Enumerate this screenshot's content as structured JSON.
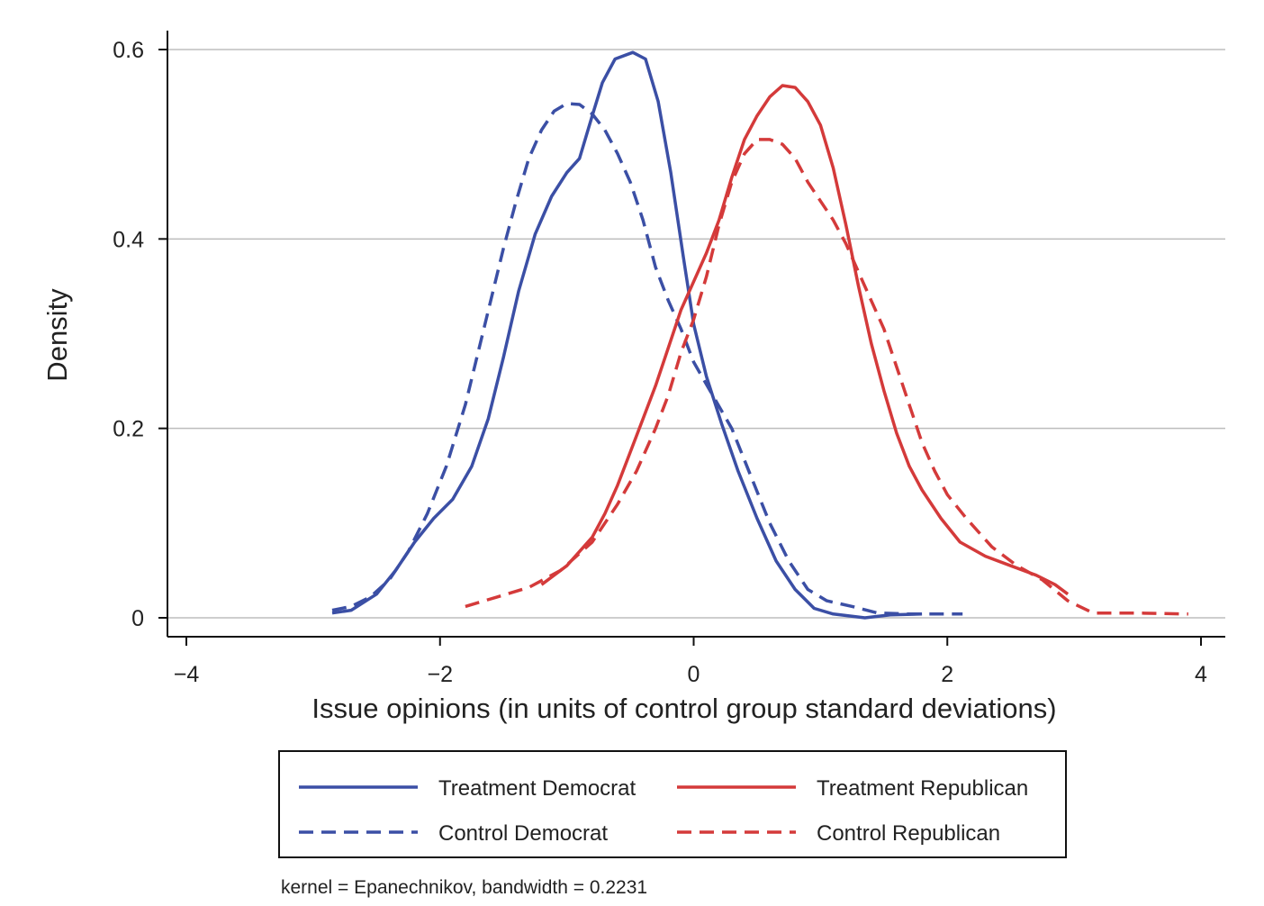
{
  "chart_data": {
    "type": "line",
    "title": "",
    "xlabel": "Issue opinions (in units of control group standard deviations)",
    "ylabel": "Density",
    "xlim": [
      -4,
      4
    ],
    "ylim": [
      0,
      0.6
    ],
    "xticks": [
      -4,
      -2,
      0,
      2,
      4
    ],
    "xtick_labels": [
      "−4",
      "−2",
      "0",
      "2",
      "4"
    ],
    "yticks": [
      0,
      0.2,
      0.4,
      0.6
    ],
    "ytick_labels": [
      "0",
      "0.2",
      "0.4",
      "0.6"
    ],
    "grid": "horizontal",
    "legend_position": "bottom",
    "note": "kernel = Epanechnikov, bandwidth = 0.2231",
    "series": [
      {
        "name": "Treatment Democrat",
        "color": "#3b4fa5",
        "dash": "solid",
        "points": [
          [
            -2.85,
            0.005
          ],
          [
            -2.7,
            0.008
          ],
          [
            -2.5,
            0.025
          ],
          [
            -2.35,
            0.05
          ],
          [
            -2.2,
            0.08
          ],
          [
            -2.05,
            0.105
          ],
          [
            -1.9,
            0.125
          ],
          [
            -1.75,
            0.16
          ],
          [
            -1.62,
            0.21
          ],
          [
            -1.5,
            0.275
          ],
          [
            -1.38,
            0.345
          ],
          [
            -1.25,
            0.405
          ],
          [
            -1.12,
            0.445
          ],
          [
            -1.0,
            0.47
          ],
          [
            -0.9,
            0.485
          ],
          [
            -0.8,
            0.53
          ],
          [
            -0.72,
            0.565
          ],
          [
            -0.62,
            0.59
          ],
          [
            -0.48,
            0.597
          ],
          [
            -0.38,
            0.59
          ],
          [
            -0.28,
            0.545
          ],
          [
            -0.18,
            0.47
          ],
          [
            -0.08,
            0.38
          ],
          [
            0.0,
            0.31
          ],
          [
            0.1,
            0.255
          ],
          [
            0.22,
            0.205
          ],
          [
            0.35,
            0.155
          ],
          [
            0.5,
            0.105
          ],
          [
            0.65,
            0.06
          ],
          [
            0.8,
            0.03
          ],
          [
            0.95,
            0.01
          ],
          [
            1.1,
            0.004
          ],
          [
            1.35,
            0.0
          ],
          [
            1.55,
            0.003
          ],
          [
            1.8,
            0.004
          ]
        ]
      },
      {
        "name": "Control Democrat",
        "color": "#3b4fa5",
        "dash": "dashed",
        "points": [
          [
            -2.85,
            0.008
          ],
          [
            -2.7,
            0.012
          ],
          [
            -2.55,
            0.022
          ],
          [
            -2.4,
            0.04
          ],
          [
            -2.25,
            0.07
          ],
          [
            -2.1,
            0.11
          ],
          [
            -1.95,
            0.16
          ],
          [
            -1.8,
            0.225
          ],
          [
            -1.7,
            0.28
          ],
          [
            -1.6,
            0.335
          ],
          [
            -1.5,
            0.39
          ],
          [
            -1.4,
            0.44
          ],
          [
            -1.3,
            0.485
          ],
          [
            -1.2,
            0.515
          ],
          [
            -1.1,
            0.535
          ],
          [
            -1.0,
            0.543
          ],
          [
            -0.9,
            0.542
          ],
          [
            -0.8,
            0.532
          ],
          [
            -0.7,
            0.515
          ],
          [
            -0.6,
            0.49
          ],
          [
            -0.5,
            0.46
          ],
          [
            -0.4,
            0.42
          ],
          [
            -0.3,
            0.37
          ],
          [
            -0.2,
            0.335
          ],
          [
            -0.1,
            0.305
          ],
          [
            0.0,
            0.27
          ],
          [
            0.15,
            0.235
          ],
          [
            0.3,
            0.2
          ],
          [
            0.45,
            0.15
          ],
          [
            0.6,
            0.1
          ],
          [
            0.75,
            0.06
          ],
          [
            0.9,
            0.03
          ],
          [
            1.05,
            0.018
          ],
          [
            1.25,
            0.012
          ],
          [
            1.45,
            0.005
          ],
          [
            1.7,
            0.004
          ],
          [
            1.9,
            0.004
          ],
          [
            2.12,
            0.004
          ]
        ]
      },
      {
        "name": "Treatment Republican",
        "color": "#d43a3a",
        "dash": "solid",
        "points": [
          [
            -1.2,
            0.035
          ],
          [
            -1.0,
            0.055
          ],
          [
            -0.8,
            0.085
          ],
          [
            -0.7,
            0.11
          ],
          [
            -0.6,
            0.14
          ],
          [
            -0.5,
            0.175
          ],
          [
            -0.4,
            0.21
          ],
          [
            -0.3,
            0.245
          ],
          [
            -0.2,
            0.285
          ],
          [
            -0.1,
            0.325
          ],
          [
            0.0,
            0.355
          ],
          [
            0.1,
            0.385
          ],
          [
            0.2,
            0.42
          ],
          [
            0.3,
            0.465
          ],
          [
            0.4,
            0.505
          ],
          [
            0.5,
            0.53
          ],
          [
            0.6,
            0.55
          ],
          [
            0.7,
            0.562
          ],
          [
            0.8,
            0.56
          ],
          [
            0.9,
            0.545
          ],
          [
            1.0,
            0.52
          ],
          [
            1.1,
            0.475
          ],
          [
            1.2,
            0.415
          ],
          [
            1.3,
            0.35
          ],
          [
            1.4,
            0.29
          ],
          [
            1.5,
            0.24
          ],
          [
            1.6,
            0.195
          ],
          [
            1.7,
            0.16
          ],
          [
            1.8,
            0.135
          ],
          [
            1.95,
            0.105
          ],
          [
            2.1,
            0.08
          ],
          [
            2.3,
            0.065
          ],
          [
            2.5,
            0.055
          ],
          [
            2.7,
            0.045
          ],
          [
            2.85,
            0.035
          ],
          [
            2.95,
            0.025
          ]
        ]
      },
      {
        "name": "Control Republican",
        "color": "#d43a3a",
        "dash": "dashed",
        "points": [
          [
            -1.8,
            0.012
          ],
          [
            -1.55,
            0.022
          ],
          [
            -1.3,
            0.032
          ],
          [
            -1.05,
            0.05
          ],
          [
            -0.8,
            0.08
          ],
          [
            -0.6,
            0.12
          ],
          [
            -0.45,
            0.155
          ],
          [
            -0.3,
            0.2
          ],
          [
            -0.2,
            0.235
          ],
          [
            -0.1,
            0.28
          ],
          [
            0.0,
            0.315
          ],
          [
            0.1,
            0.36
          ],
          [
            0.2,
            0.415
          ],
          [
            0.3,
            0.46
          ],
          [
            0.4,
            0.49
          ],
          [
            0.5,
            0.505
          ],
          [
            0.6,
            0.505
          ],
          [
            0.7,
            0.5
          ],
          [
            0.8,
            0.485
          ],
          [
            0.9,
            0.46
          ],
          [
            1.0,
            0.44
          ],
          [
            1.1,
            0.42
          ],
          [
            1.2,
            0.395
          ],
          [
            1.3,
            0.365
          ],
          [
            1.4,
            0.335
          ],
          [
            1.5,
            0.305
          ],
          [
            1.6,
            0.265
          ],
          [
            1.7,
            0.225
          ],
          [
            1.8,
            0.185
          ],
          [
            1.9,
            0.155
          ],
          [
            2.0,
            0.13
          ],
          [
            2.15,
            0.105
          ],
          [
            2.35,
            0.075
          ],
          [
            2.55,
            0.055
          ],
          [
            2.75,
            0.04
          ],
          [
            2.95,
            0.018
          ],
          [
            3.15,
            0.005
          ],
          [
            3.5,
            0.005
          ],
          [
            3.9,
            0.004
          ]
        ]
      }
    ]
  }
}
